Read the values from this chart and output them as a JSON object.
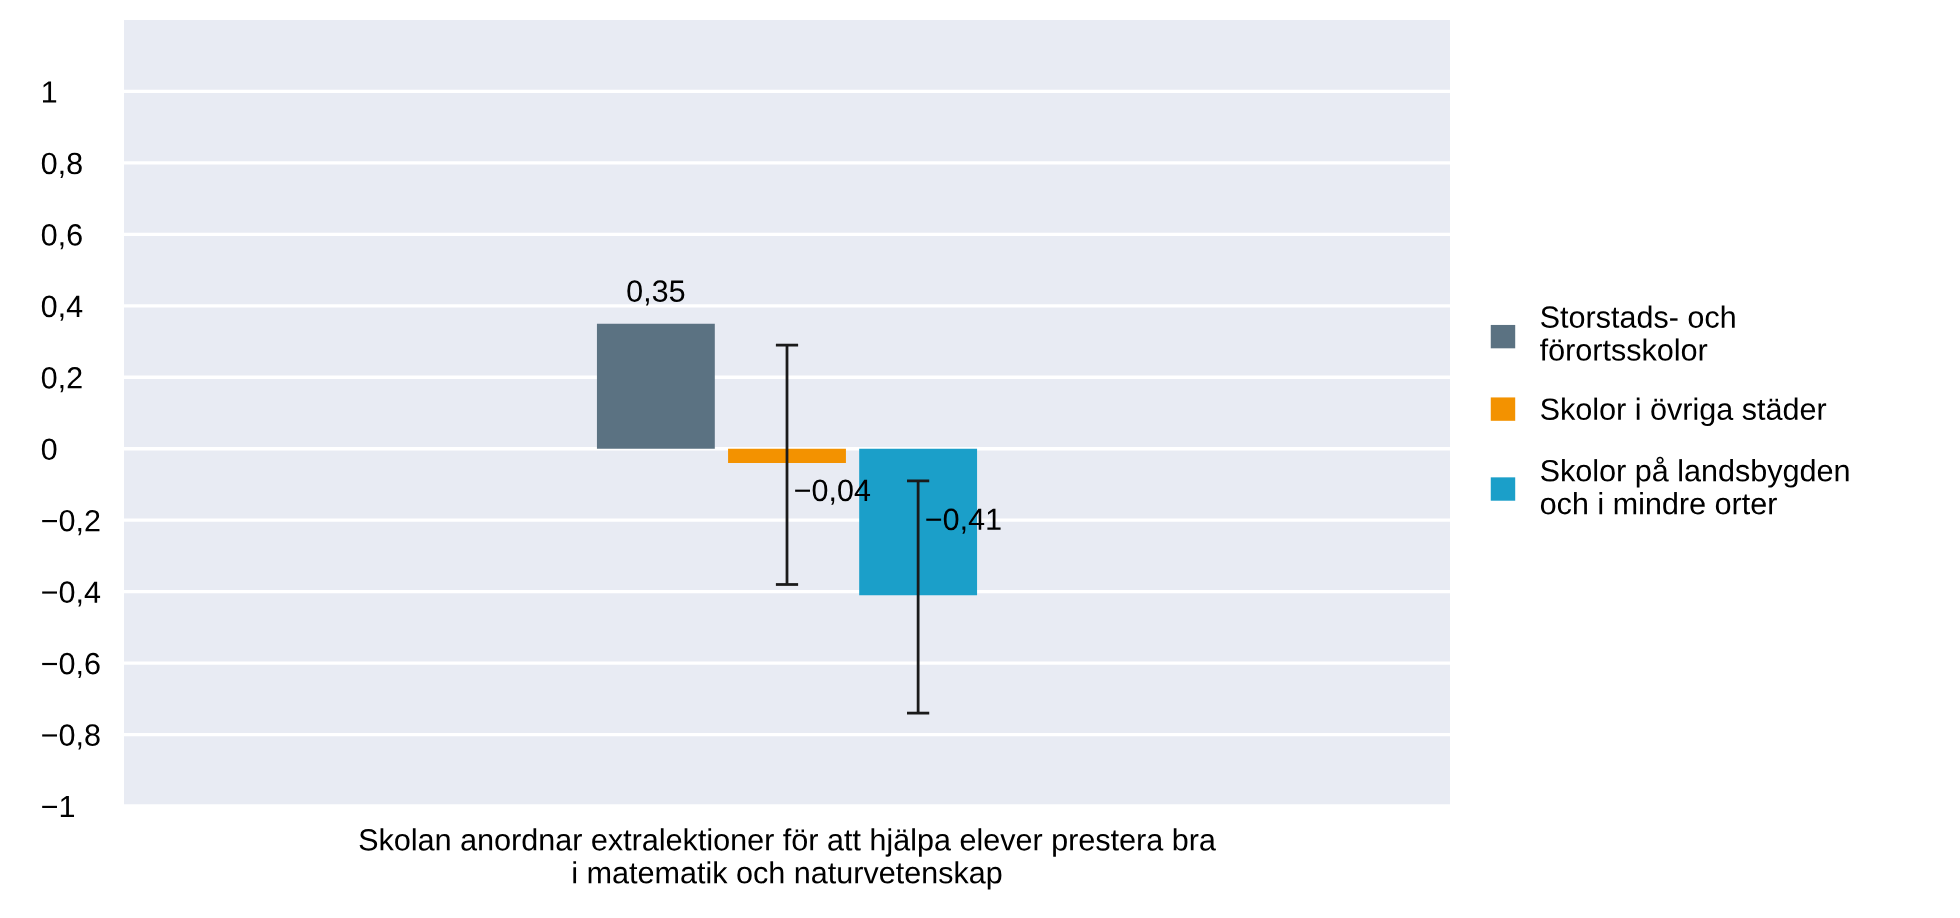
{
  "chart_data": {
    "type": "bar",
    "categories": [
      "Skolan anordnar extralektioner för att hjälpa elever prestera bra\ni matematik och naturvetenskap"
    ],
    "series": [
      {
        "name": "Storstads- och\nförortsskolor",
        "color": "#5b7282",
        "values": [
          0.35
        ],
        "errors": [
          null
        ],
        "value_labels": [
          "0,35"
        ]
      },
      {
        "name": "Skolor i övriga städer",
        "color": "#f39200",
        "values": [
          -0.04
        ],
        "errors": [
          [
            -0.38,
            0.29
          ]
        ],
        "value_labels": [
          "−0,04"
        ]
      },
      {
        "name": "Skolor på landsbygden\noch i mindre orter",
        "color": "#1b9fc9",
        "values": [
          -0.41
        ],
        "errors": [
          [
            -0.74,
            -0.09
          ]
        ],
        "value_labels": [
          "−0,41"
        ]
      }
    ],
    "ylim": [
      -1,
      1.2
    ],
    "yticks": [
      {
        "value": -1,
        "label": "−1"
      },
      {
        "value": -0.8,
        "label": "−0,8"
      },
      {
        "value": -0.6,
        "label": "−0,6"
      },
      {
        "value": -0.4,
        "label": "−0,4"
      },
      {
        "value": -0.2,
        "label": "−0,2"
      },
      {
        "value": 0,
        "label": "0"
      },
      {
        "value": 0.2,
        "label": "0,2"
      },
      {
        "value": 0.4,
        "label": "0,4"
      },
      {
        "value": 0.6,
        "label": "0,6"
      },
      {
        "value": 0.8,
        "label": "0,8"
      },
      {
        "value": 1,
        "label": "1"
      }
    ],
    "grid": "y",
    "legend": "right"
  }
}
